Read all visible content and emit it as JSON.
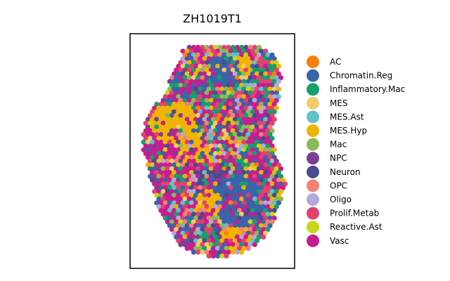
{
  "chart_data": {
    "type": "scatter",
    "title": "ZH1019T1",
    "xlabel": "",
    "ylabel": "",
    "grid": false,
    "axes_ticks": false,
    "legend_placement": "right",
    "categories": [
      {
        "name": "AC",
        "color": "#f97f0e"
      },
      {
        "name": "Chromatin.Reg",
        "color": "#3a64a9"
      },
      {
        "name": "Inflammatory.Mac",
        "color": "#14a06c"
      },
      {
        "name": "MES",
        "color": "#f3cc6a"
      },
      {
        "name": "MES.Ast",
        "color": "#62c2c9"
      },
      {
        "name": "MES.Hyp",
        "color": "#f1b304"
      },
      {
        "name": "Mac",
        "color": "#8bb958"
      },
      {
        "name": "NPC",
        "color": "#7a3f92"
      },
      {
        "name": "Neuron",
        "color": "#4b4a8c"
      },
      {
        "name": "OPC",
        "color": "#f38271"
      },
      {
        "name": "Oligo",
        "color": "#b2a8dc"
      },
      {
        "name": "Prolif.Metab",
        "color": "#e3416f"
      },
      {
        "name": "Reactive.Ast",
        "color": "#c8d718"
      },
      {
        "name": "Vasc",
        "color": "#c81d8f"
      }
    ]
  }
}
